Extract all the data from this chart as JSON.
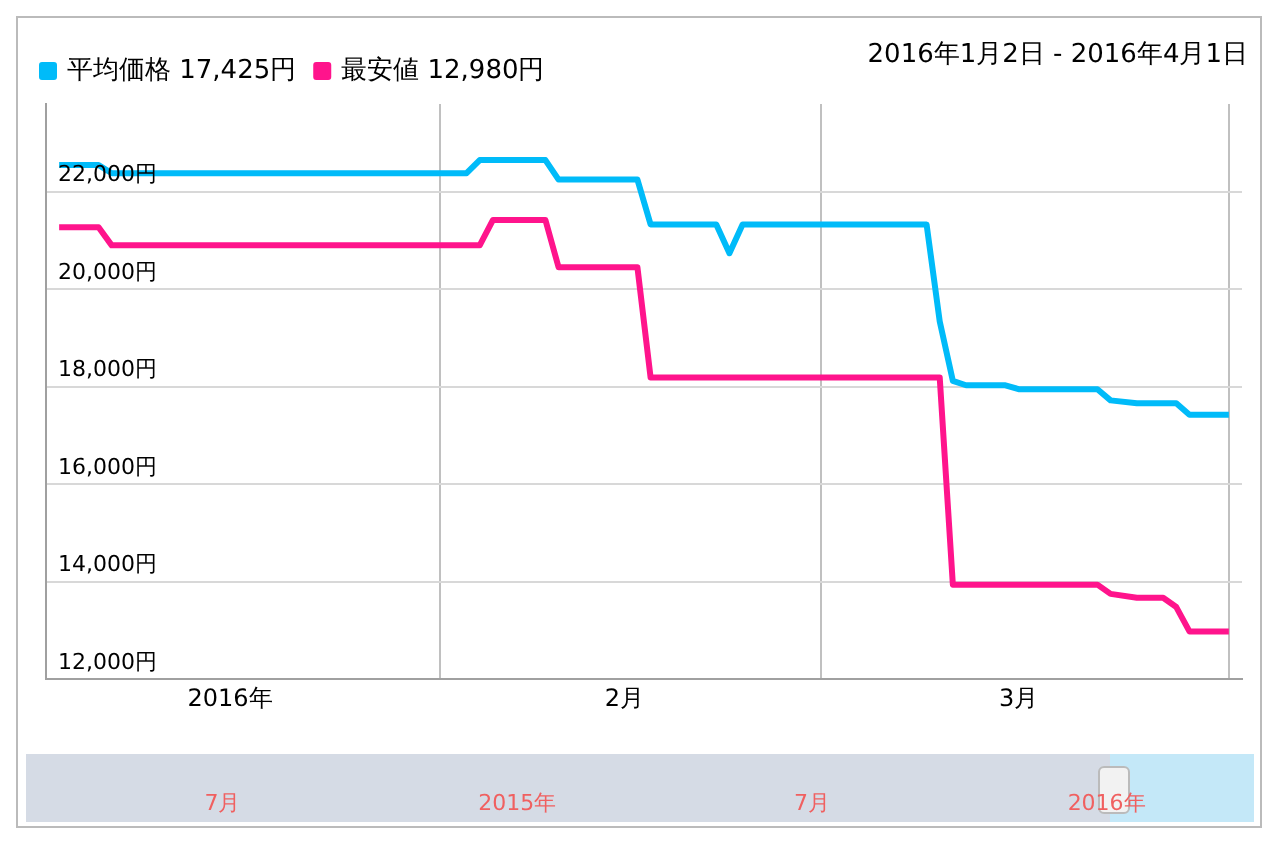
{
  "chart_data": {
    "type": "line",
    "subtitle": "2016年1月2日 - 2016年4月1日",
    "xlim": [
      "2016-01-02",
      "2016-04-02"
    ],
    "xticks": [
      {
        "value": "2016-01-16",
        "label": "2016年"
      },
      {
        "value": "2016-02-01",
        "label": null
      },
      {
        "value": "2016-02-15",
        "label": "2月"
      },
      {
        "value": "2016-03-01",
        "label": null
      },
      {
        "value": "2016-03-16",
        "label": "3月"
      },
      {
        "value": "2016-04-01",
        "label": null
      }
    ],
    "ylim": [
      12000,
      23800
    ],
    "yticks": [
      {
        "value": 12000,
        "label": "12,000円"
      },
      {
        "value": 14000,
        "label": "14,000円"
      },
      {
        "value": 16000,
        "label": "16,000円"
      },
      {
        "value": 18000,
        "label": "18,000円"
      },
      {
        "value": 20000,
        "label": "20,000円"
      },
      {
        "value": 22000,
        "label": "22,000円"
      }
    ],
    "series": [
      {
        "name": "平均価格 17,425円",
        "color": "#00bbf9",
        "x": [
          "2016-01-03",
          "2016-01-06",
          "2016-01-07",
          "2016-02-03",
          "2016-02-04",
          "2016-02-09",
          "2016-02-10",
          "2016-02-16",
          "2016-02-17",
          "2016-02-22",
          "2016-02-23",
          "2016-02-24",
          "2016-03-09",
          "2016-03-10",
          "2016-03-11",
          "2016-03-12",
          "2016-03-15",
          "2016-03-16",
          "2016-03-22",
          "2016-03-23",
          "2016-03-25",
          "2016-03-28",
          "2016-03-29",
          "2016-04-01"
        ],
        "values": [
          22550,
          22550,
          22380,
          22380,
          22650,
          22650,
          22250,
          22250,
          21330,
          21330,
          20740,
          21330,
          21330,
          19340,
          18120,
          18030,
          18030,
          17950,
          17950,
          17720,
          17660,
          17660,
          17425,
          17425
        ]
      },
      {
        "name": "最安値 12,980円",
        "color": "#ff148c",
        "x": [
          "2016-01-03",
          "2016-01-06",
          "2016-01-07",
          "2016-02-04",
          "2016-02-05",
          "2016-02-09",
          "2016-02-10",
          "2016-02-16",
          "2016-02-17",
          "2016-03-10",
          "2016-03-11",
          "2016-03-22",
          "2016-03-23",
          "2016-03-25",
          "2016-03-27",
          "2016-03-28",
          "2016-03-29",
          "2016-04-01"
        ],
        "values": [
          21270,
          21270,
          20900,
          20900,
          21420,
          21420,
          20450,
          20450,
          18190,
          18190,
          13940,
          13940,
          13750,
          13670,
          13670,
          13480,
          12980,
          12980
        ]
      }
    ],
    "grid": true,
    "legend": "top left",
    "marker": "none",
    "line_style": "solid",
    "annotations": [
      "7月",
      "2015年",
      "7月",
      "2016年"
    ]
  }
}
